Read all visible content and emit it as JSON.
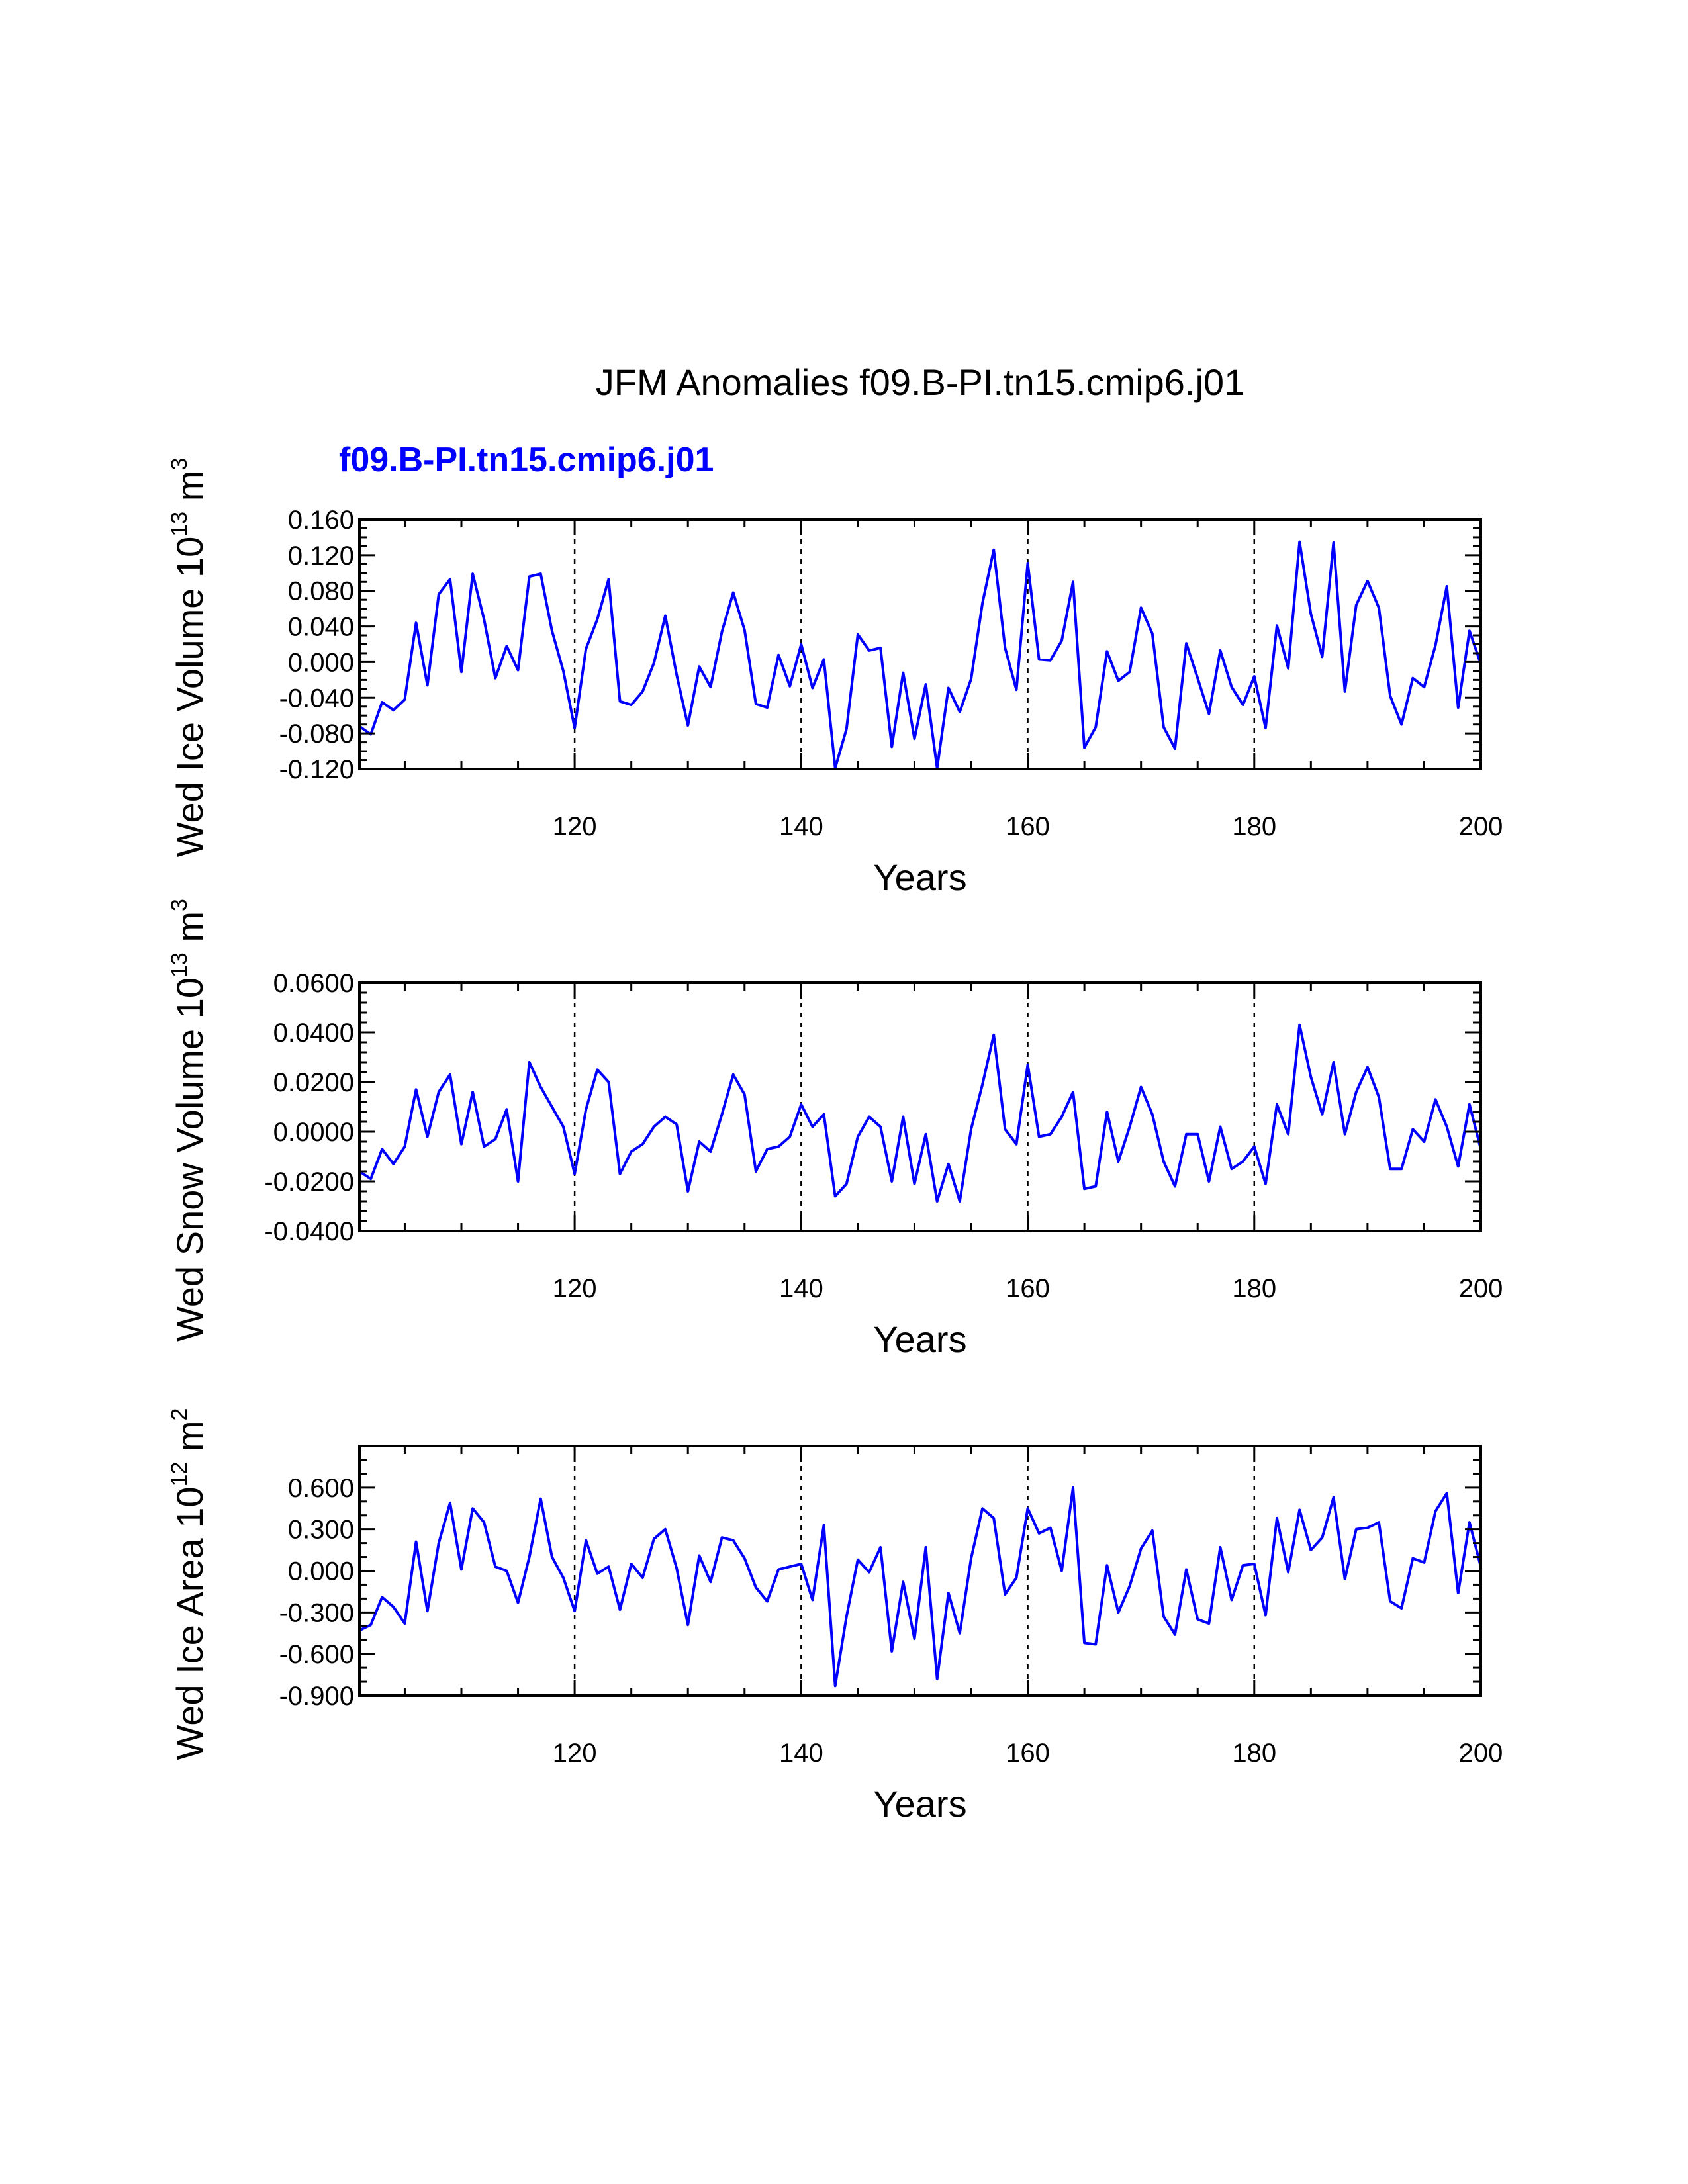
{
  "title": "JFM Anomalies f09.B-PI.tn15.cmip6.j01",
  "subtitle": "f09.B-PI.tn15.cmip6.j01",
  "colors": {
    "series": "#0000ff",
    "subtitle": "#0000ff",
    "axes": "#000000"
  },
  "chart_data": [
    {
      "type": "line",
      "ylabel": {
        "main": "Wed Ice Volume 10",
        "exp": "13",
        "unit": " m",
        "unit_exp": "3"
      },
      "xlabel": "Years",
      "xlim": [
        101,
        200
      ],
      "ylim": [
        -0.12,
        0.16
      ],
      "xticks": [
        120,
        140,
        160,
        180,
        200
      ],
      "xtick_labels": [
        "120",
        "140",
        "160",
        "180",
        "200"
      ],
      "yticks": [
        -0.12,
        -0.08,
        -0.04,
        0.0,
        0.04,
        0.08,
        0.12,
        0.16
      ],
      "ytick_labels": [
        "-0.120",
        "-0.080",
        "-0.040",
        "0.000",
        "0.040",
        "0.080",
        "0.120",
        "0.160"
      ],
      "yticks_shown": [
        -0.12,
        -0.08,
        -0.04,
        0.0,
        0.04,
        0.08,
        0.12,
        0.16
      ],
      "yminor_step": 0.01,
      "vlines": [
        120,
        140,
        160,
        180
      ],
      "series": [
        {
          "name": "f09.B-PI.tn15.cmip6.j01",
          "x_start": 101,
          "values": [
            -0.072,
            -0.081,
            -0.045,
            -0.054,
            -0.042,
            0.044,
            -0.026,
            0.076,
            0.093,
            -0.011,
            0.099,
            0.048,
            -0.018,
            0.018,
            -0.009,
            0.096,
            0.099,
            0.035,
            -0.01,
            -0.074,
            0.015,
            0.048,
            0.093,
            -0.044,
            -0.048,
            -0.033,
            -0.001,
            0.052,
            -0.014,
            -0.071,
            -0.005,
            -0.028,
            0.034,
            0.078,
            0.036,
            -0.047,
            -0.051,
            0.008,
            -0.027,
            0.02,
            -0.029,
            0.003,
            -0.119,
            -0.075,
            0.031,
            0.013,
            0.016,
            -0.095,
            -0.012,
            -0.086,
            -0.025,
            -0.119,
            -0.029,
            -0.056,
            -0.019,
            0.066,
            0.126,
            0.016,
            -0.031,
            0.111,
            0.003,
            0.002,
            0.024,
            0.09,
            -0.096,
            -0.073,
            0.012,
            -0.021,
            -0.011,
            0.061,
            0.032,
            -0.073,
            -0.097,
            0.021,
            -0.018,
            -0.058,
            0.013,
            -0.028,
            -0.048,
            -0.016,
            -0.074,
            0.041,
            -0.007,
            0.135,
            0.054,
            0.006,
            0.134,
            -0.033,
            0.064,
            0.091,
            0.061,
            -0.038,
            -0.07,
            -0.018,
            -0.028,
            0.019,
            0.085,
            -0.051,
            0.035,
            -0.002
          ]
        }
      ]
    },
    {
      "type": "line",
      "ylabel": {
        "main": "Wed Snow Volume 10",
        "exp": "13",
        "unit": " m",
        "unit_exp": "3"
      },
      "xlabel": "Years",
      "xlim": [
        101,
        200
      ],
      "ylim": [
        -0.04,
        0.06
      ],
      "xticks": [
        120,
        140,
        160,
        180,
        200
      ],
      "xtick_labels": [
        "120",
        "140",
        "160",
        "180",
        "200"
      ],
      "yticks": [
        -0.04,
        -0.02,
        0.0,
        0.02,
        0.04,
        0.06
      ],
      "ytick_labels": [
        "-0.0400",
        "-0.0200",
        "0.0000",
        "0.0200",
        "0.0400",
        "0.0600"
      ],
      "yminor_step": 0.004,
      "vlines": [
        120,
        140,
        160,
        180
      ],
      "series": [
        {
          "name": "f09.B-PI.tn15.cmip6.j01",
          "x_start": 101,
          "values": [
            -0.016,
            -0.019,
            -0.007,
            -0.013,
            -0.006,
            0.017,
            -0.002,
            0.016,
            0.023,
            -0.005,
            0.016,
            -0.006,
            -0.003,
            0.009,
            -0.02,
            0.028,
            0.018,
            0.01,
            0.002,
            -0.017,
            0.009,
            0.025,
            0.02,
            -0.017,
            -0.008,
            -0.005,
            0.002,
            0.006,
            0.003,
            -0.024,
            -0.004,
            -0.008,
            0.007,
            0.023,
            0.015,
            -0.016,
            -0.007,
            -0.006,
            -0.002,
            0.011,
            0.002,
            0.007,
            -0.026,
            -0.021,
            -0.002,
            0.006,
            0.002,
            -0.02,
            0.006,
            -0.021,
            -0.001,
            -0.028,
            -0.013,
            -0.028,
            0.001,
            0.019,
            0.039,
            0.001,
            -0.005,
            0.027,
            -0.002,
            -0.001,
            0.006,
            0.016,
            -0.023,
            -0.022,
            0.008,
            -0.012,
            0.002,
            0.018,
            0.007,
            -0.012,
            -0.022,
            -0.001,
            -0.001,
            -0.02,
            0.002,
            -0.015,
            -0.012,
            -0.006,
            -0.021,
            0.011,
            -0.001,
            0.043,
            0.022,
            0.007,
            0.028,
            -0.001,
            0.016,
            0.026,
            0.014,
            -0.015,
            -0.015,
            0.001,
            -0.004,
            0.013,
            0.002,
            -0.014,
            0.011,
            -0.007
          ]
        }
      ]
    },
    {
      "type": "line",
      "ylabel": {
        "main": "Wed Ice Area 10",
        "exp": "12",
        "unit": " m",
        "unit_exp": "2"
      },
      "xlabel": "Years",
      "xlim": [
        101,
        200
      ],
      "ylim": [
        -0.9,
        0.9
      ],
      "xticks": [
        120,
        140,
        160,
        180,
        200
      ],
      "xtick_labels": [
        "120",
        "140",
        "160",
        "180",
        "200"
      ],
      "yticks": [
        -0.9,
        -0.6,
        -0.3,
        0.0,
        0.3,
        0.6
      ],
      "ytick_labels": [
        "-0.900",
        "-0.600",
        "-0.300",
        "0.000",
        "0.300",
        "0.600"
      ],
      "yminor_step": 0.1,
      "vlines": [
        120,
        140,
        160,
        180
      ],
      "series": [
        {
          "name": "f09.B-PI.tn15.cmip6.j01",
          "x_start": 101,
          "values": [
            -0.43,
            -0.39,
            -0.19,
            -0.26,
            -0.38,
            0.21,
            -0.29,
            0.2,
            0.49,
            0.01,
            0.45,
            0.35,
            0.03,
            0.0,
            -0.23,
            0.1,
            0.52,
            0.1,
            -0.05,
            -0.29,
            0.22,
            -0.02,
            0.03,
            -0.28,
            0.05,
            -0.05,
            0.23,
            0.3,
            0.02,
            -0.39,
            0.11,
            -0.08,
            0.24,
            0.22,
            0.09,
            -0.12,
            -0.22,
            0.01,
            0.03,
            0.05,
            -0.21,
            0.33,
            -0.83,
            -0.33,
            0.08,
            -0.01,
            0.17,
            -0.58,
            -0.08,
            -0.49,
            0.17,
            -0.78,
            -0.16,
            -0.45,
            0.09,
            0.45,
            0.38,
            -0.17,
            -0.05,
            0.45,
            0.27,
            0.31,
            0.0,
            0.6,
            -0.52,
            -0.53,
            0.04,
            -0.3,
            -0.11,
            0.16,
            0.29,
            -0.33,
            -0.46,
            0.01,
            -0.35,
            -0.38,
            0.17,
            -0.21,
            0.04,
            0.05,
            -0.32,
            0.38,
            -0.01,
            0.44,
            0.15,
            0.24,
            0.53,
            -0.06,
            0.3,
            0.31,
            0.35,
            -0.22,
            -0.27,
            0.09,
            0.06,
            0.43,
            0.56,
            -0.16,
            0.35,
            0.03
          ]
        }
      ]
    }
  ]
}
